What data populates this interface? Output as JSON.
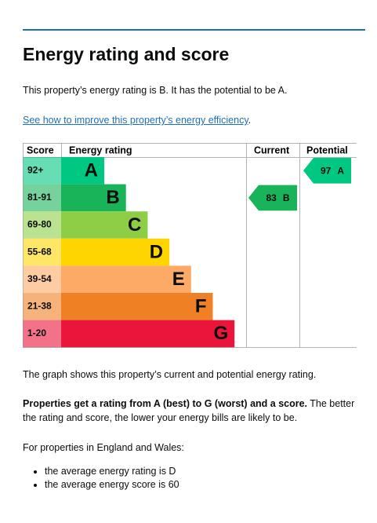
{
  "header": {
    "title": "Energy rating and score"
  },
  "intro": "This property’s energy rating is B. It has the potential to be A.",
  "link": {
    "text": "See how to improve this property’s energy efficiency",
    "suffix": "."
  },
  "table": {
    "headers": [
      "Score",
      "Energy rating",
      "Current",
      "Potential"
    ],
    "rows": [
      {
        "score": "92+",
        "band": "A",
        "color": "#00c781"
      },
      {
        "score": "81-91",
        "band": "B",
        "color": "#19b459"
      },
      {
        "score": "69-80",
        "band": "C",
        "color": "#8dce46"
      },
      {
        "score": "55-68",
        "band": "D",
        "color": "#ffd500"
      },
      {
        "score": "39-54",
        "band": "E",
        "color": "#fcaa65"
      },
      {
        "score": "21-38",
        "band": "F",
        "color": "#ef8023"
      },
      {
        "score": "1-20",
        "band": "G",
        "color": "#e9153b"
      }
    ],
    "current": {
      "score": 83,
      "band": "B"
    },
    "potential": {
      "score": 97,
      "band": "A"
    }
  },
  "caption": "The graph shows this property’s current and potential energy rating.",
  "explanation": {
    "bold": "Properties get a rating from A (best) to G (worst) and a score.",
    "rest": " The better the rating and score, the lower your energy bills are likely to be."
  },
  "averages": {
    "intro": "For properties in England and Wales:",
    "items": [
      "the average energy rating is D",
      "the average energy score is 60"
    ]
  }
}
